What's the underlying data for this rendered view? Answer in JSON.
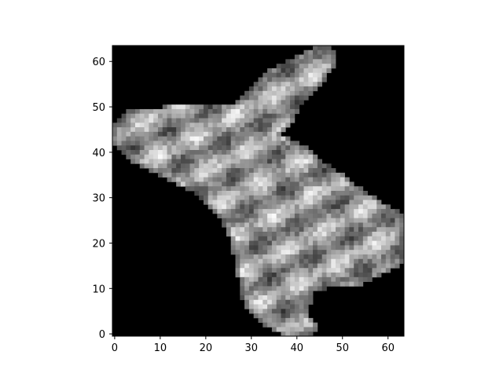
{
  "chart_data": {
    "type": "heatmap",
    "title": "",
    "xlabel": "",
    "ylabel": "",
    "colormap": "gray",
    "image_size": [
      64,
      64
    ],
    "x_range": [
      -0.5,
      63.5
    ],
    "y_range": [
      63.5,
      -0.5
    ],
    "y_axis_inverted": true,
    "grid": false,
    "x_ticks": [
      0,
      10,
      20,
      30,
      40,
      50,
      60
    ],
    "y_ticks": [
      0,
      10,
      20,
      30,
      40,
      50,
      60
    ],
    "x_tick_labels": [
      "0",
      "10",
      "20",
      "30",
      "40",
      "50",
      "60"
    ],
    "y_tick_labels": [
      "0",
      "10",
      "20",
      "30",
      "40",
      "50",
      "60"
    ],
    "background_value": 0,
    "value_range": [
      0,
      255
    ],
    "object_mask_row_spans": [
      {
        "row": 0,
        "from": 44,
        "to": 47
      },
      {
        "row": 1,
        "from": 42,
        "to": 48
      },
      {
        "row": 2,
        "from": 40,
        "to": 48
      },
      {
        "row": 3,
        "from": 38,
        "to": 48
      },
      {
        "row": 4,
        "from": 36,
        "to": 48
      },
      {
        "row": 5,
        "from": 34,
        "to": 47
      },
      {
        "row": 6,
        "from": 33,
        "to": 46
      },
      {
        "row": 7,
        "from": 32,
        "to": 46
      },
      {
        "row": 8,
        "from": 31,
        "to": 45
      },
      {
        "row": 9,
        "from": 30,
        "to": 44
      },
      {
        "row": 10,
        "from": 29,
        "to": 43
      },
      {
        "row": 11,
        "from": 28,
        "to": 42
      },
      {
        "row": 12,
        "from": 27,
        "to": 41
      },
      {
        "row": 13,
        "from": 11,
        "to": 40
      },
      {
        "row": 14,
        "from": 3,
        "to": 40
      },
      {
        "row": 15,
        "from": 2,
        "to": 39
      },
      {
        "row": 16,
        "from": 1,
        "to": 39
      },
      {
        "row": 17,
        "from": 0,
        "to": 38
      },
      {
        "row": 18,
        "from": 0,
        "to": 37
      },
      {
        "row": 19,
        "from": 0,
        "to": 36
      },
      {
        "row": 20,
        "from": 0,
        "to": 38
      },
      {
        "row": 21,
        "from": 0,
        "to": 40
      },
      {
        "row": 22,
        "from": 1,
        "to": 42
      },
      {
        "row": 23,
        "from": 2,
        "to": 43
      },
      {
        "row": 24,
        "from": 3,
        "to": 44
      },
      {
        "row": 25,
        "from": 4,
        "to": 45
      },
      {
        "row": 26,
        "from": 6,
        "to": 47
      },
      {
        "row": 27,
        "from": 8,
        "to": 48
      },
      {
        "row": 28,
        "from": 10,
        "to": 50
      },
      {
        "row": 29,
        "from": 12,
        "to": 51
      },
      {
        "row": 30,
        "from": 14,
        "to": 52
      },
      {
        "row": 31,
        "from": 16,
        "to": 54
      },
      {
        "row": 32,
        "from": 18,
        "to": 55
      },
      {
        "row": 33,
        "from": 19,
        "to": 57
      },
      {
        "row": 34,
        "from": 20,
        "to": 58
      },
      {
        "row": 35,
        "from": 21,
        "to": 60
      },
      {
        "row": 36,
        "from": 22,
        "to": 62
      },
      {
        "row": 37,
        "from": 23,
        "to": 63
      },
      {
        "row": 38,
        "from": 24,
        "to": 63
      },
      {
        "row": 39,
        "from": 24,
        "to": 63
      },
      {
        "row": 40,
        "from": 25,
        "to": 63
      },
      {
        "row": 41,
        "from": 25,
        "to": 63
      },
      {
        "row": 42,
        "from": 26,
        "to": 63
      },
      {
        "row": 43,
        "from": 26,
        "to": 63
      },
      {
        "row": 44,
        "from": 26,
        "to": 63
      },
      {
        "row": 45,
        "from": 26,
        "to": 63
      },
      {
        "row": 46,
        "from": 27,
        "to": 63
      },
      {
        "row": 47,
        "from": 27,
        "to": 63
      },
      {
        "row": 48,
        "from": 27,
        "to": 62
      },
      {
        "row": 49,
        "from": 27,
        "to": 60
      },
      {
        "row": 50,
        "from": 27,
        "to": 58
      },
      {
        "row": 51,
        "from": 28,
        "to": 56
      },
      {
        "row": 52,
        "from": 28,
        "to": 54
      },
      {
        "row": 53,
        "from": 28,
        "to": 46
      },
      {
        "row": 54,
        "from": 28,
        "to": 43
      },
      {
        "row": 55,
        "from": 28,
        "to": 43
      },
      {
        "row": 56,
        "from": 29,
        "to": 43
      },
      {
        "row": 57,
        "from": 29,
        "to": 42
      },
      {
        "row": 58,
        "from": 30,
        "to": 42
      },
      {
        "row": 59,
        "from": 31,
        "to": 42
      },
      {
        "row": 60,
        "from": 32,
        "to": 43
      },
      {
        "row": 61,
        "from": 33,
        "to": 44
      },
      {
        "row": 62,
        "from": 35,
        "to": 44
      },
      {
        "row": 63,
        "from": 37,
        "to": 43
      }
    ]
  },
  "colors": {
    "page_background": "#ffffff",
    "axes_frame": "#000000",
    "image_background": "#000000",
    "tick_text": "#000000"
  }
}
